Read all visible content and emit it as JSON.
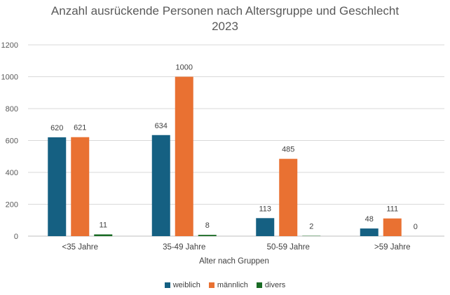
{
  "chart_data": {
    "type": "bar",
    "title": "Anzahl ausrückende Personen nach Altersgruppe und Geschlecht",
    "subtitle": "2023",
    "xlabel": "Alter nach Gruppen",
    "ylabel": "",
    "ylim": [
      0,
      1200
    ],
    "yticks": [
      0,
      200,
      400,
      600,
      800,
      1000,
      1200
    ],
    "grid": true,
    "legend_position": "bottom",
    "categories": [
      "<35 Jahre",
      "35-49 Jahre",
      "50-59 Jahre",
      ">59 Jahre"
    ],
    "series": [
      {
        "name": "weiblich",
        "color": "#156082",
        "values": [
          620,
          634,
          113,
          48
        ]
      },
      {
        "name": "männlich",
        "color": "#E97132",
        "values": [
          621,
          1000,
          485,
          111
        ]
      },
      {
        "name": "divers",
        "color": "#196B24",
        "values": [
          11,
          8,
          2,
          0
        ]
      }
    ]
  }
}
